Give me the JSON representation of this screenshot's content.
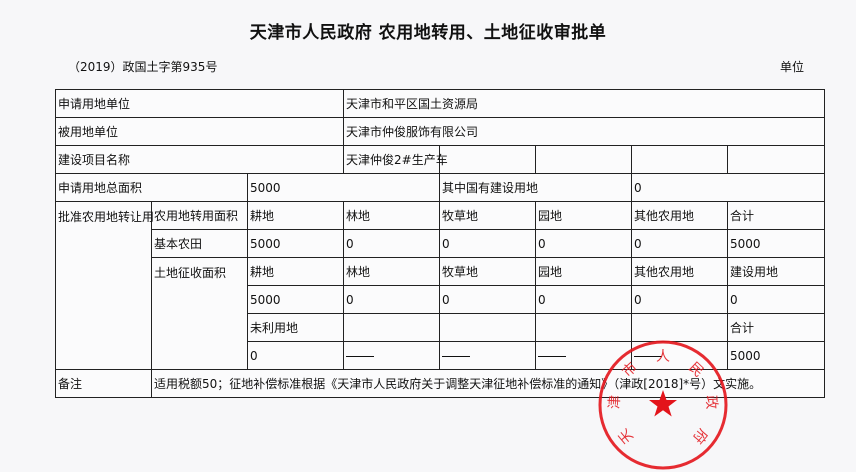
{
  "header": {
    "title": "天津市人民政府   农用地转用、土地征收审批单",
    "doc_number": "（2019）政国土字第935号",
    "unit_label": "单位"
  },
  "rows": {
    "applicant_label": "申请用地单位",
    "applicant_value": "天津市和平区国土资源局",
    "user_label": "被用地单位",
    "user_value": "天津市仲俊服饰有限公司",
    "project_label": "建设项目名称",
    "project_value": "天津仲俊2#生产车",
    "total_area_label": "申请用地总面积",
    "total_area_value": "5000",
    "state_land_label": "其中国有建设用地",
    "state_land_value": "0",
    "approval_label": "批准农用地转让用",
    "conversion_label": "农用地转用面积",
    "conversion_headers": [
      "耕地",
      "林地",
      "牧草地",
      "园地",
      "其他农用地",
      "合计"
    ],
    "basic_farmland_label": "基本农田",
    "basic_farmland_values": [
      "5000",
      "0",
      "0",
      "0",
      "0",
      "5000"
    ],
    "expropriation_label": "土地征收面积",
    "expropriation_headers": [
      "耕地",
      "林地",
      "牧草地",
      "园地",
      "其他农用地",
      "建设用地"
    ],
    "expropriation_values": [
      "5000",
      "0",
      "0",
      "0",
      "0",
      "0"
    ],
    "unused_label": "未利用地",
    "unused_total_label": "合计",
    "unused_value": "0",
    "unused_total_value": "5000",
    "remarks_label": "备注",
    "remarks_value": "适用税额50；征地补偿标准根据《天津市人民政府关于调整天津征地补偿标准的通知》（津政[2018]*号）文实施。"
  },
  "stamp": {
    "text": "天津市人民政府",
    "color": "#e3141b",
    "icon": "star-icon"
  }
}
